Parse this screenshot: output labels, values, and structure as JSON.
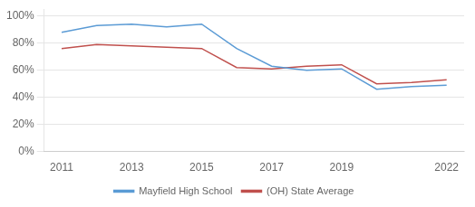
{
  "chart_data": {
    "type": "line",
    "x": [
      2011,
      2012,
      2013,
      2014,
      2015,
      2016,
      2017,
      2018,
      2019,
      2020,
      2021,
      2022
    ],
    "series": [
      {
        "name": "Mayfield High School",
        "color": "#5b9bd5",
        "values": [
          0.88,
          0.93,
          0.94,
          0.92,
          0.94,
          0.76,
          0.63,
          0.6,
          0.61,
          0.46,
          0.48,
          0.49
        ]
      },
      {
        "name": "(OH) State Average",
        "color": "#c0504d",
        "values": [
          0.76,
          0.79,
          0.78,
          0.77,
          0.76,
          0.62,
          0.61,
          0.63,
          0.64,
          0.5,
          0.51,
          0.53
        ]
      }
    ],
    "xlim": [
      2010.5,
      2022.5
    ],
    "xticks": [
      2011,
      2013,
      2015,
      2017,
      2019,
      2022
    ],
    "ylim": [
      0,
      1.05
    ],
    "yticks": [
      {
        "value": 0.0,
        "label": "0%"
      },
      {
        "value": 0.2,
        "label": "20%"
      },
      {
        "value": 0.4,
        "label": "40%"
      },
      {
        "value": 0.6,
        "label": "60%"
      },
      {
        "value": 0.8,
        "label": "80%"
      },
      {
        "value": 1.0,
        "label": "100%"
      }
    ],
    "grid": "y",
    "legend": "bottom"
  }
}
